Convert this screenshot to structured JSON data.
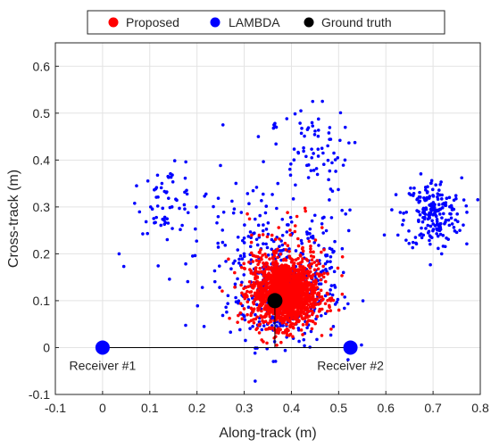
{
  "chart_data": {
    "type": "scatter",
    "title": "",
    "xlabel": "Along-track (m)",
    "ylabel": "Cross-track (m)",
    "xlim": [
      -0.1,
      0.8
    ],
    "ylim": [
      -0.1,
      0.65
    ],
    "xticks": [
      -0.1,
      0,
      0.1,
      0.2,
      0.3,
      0.4,
      0.5,
      0.6,
      0.7,
      0.8
    ],
    "yticks": [
      -0.1,
      0,
      0.1,
      0.2,
      0.3,
      0.4,
      0.5,
      0.6
    ],
    "xtick_labels": [
      "-0.1",
      "0",
      "0.1",
      "0.2",
      "0.3",
      "0.4",
      "0.5",
      "0.6",
      "0.7",
      "0.8"
    ],
    "ytick_labels": [
      "-0.1",
      "0",
      "0.1",
      "0.2",
      "0.3",
      "0.4",
      "0.5",
      "0.6"
    ],
    "grid": true,
    "legend_position": "top",
    "legend": [
      {
        "name": "Proposed",
        "color": "#ff0000"
      },
      {
        "name": "LAMBDA",
        "color": "#0000ff"
      },
      {
        "name": "Ground truth",
        "color": "#000000"
      }
    ],
    "series": [
      {
        "name": "Proposed",
        "color": "#ff0000",
        "marker": "dot",
        "clusters": [
          {
            "cx": 0.385,
            "cy": 0.115,
            "sx": 0.035,
            "sy": 0.035,
            "n": 1500
          },
          {
            "cx": 0.4,
            "cy": 0.19,
            "sx": 0.045,
            "sy": 0.045,
            "n": 110
          }
        ]
      },
      {
        "name": "LAMBDA",
        "color": "#0000ff",
        "marker": "dot",
        "clusters": [
          {
            "cx": 0.385,
            "cy": 0.115,
            "sx": 0.06,
            "sy": 0.055,
            "n": 320
          },
          {
            "cx": 0.38,
            "cy": 0.2,
            "sx": 0.09,
            "sy": 0.06,
            "n": 150
          },
          {
            "cx": 0.135,
            "cy": 0.315,
            "sx": 0.03,
            "sy": 0.035,
            "n": 55
          },
          {
            "cx": 0.7,
            "cy": 0.285,
            "sx": 0.03,
            "sy": 0.038,
            "n": 200
          },
          {
            "cx": 0.44,
            "cy": 0.42,
            "sx": 0.04,
            "sy": 0.045,
            "n": 65
          },
          {
            "cx": 0.26,
            "cy": 0.3,
            "sx": 0.05,
            "sy": 0.05,
            "n": 25
          }
        ],
        "extra_points": [
          {
            "x": 0.365,
            "y": 0.478
          },
          {
            "x": 0.365,
            "y": 0.472
          },
          {
            "x": 0.362,
            "y": 0.468
          },
          {
            "x": 0.368,
            "y": 0.47
          },
          {
            "x": 0.363,
            "y": 0.475
          },
          {
            "x": 0.33,
            "y": 0.45
          },
          {
            "x": 0.255,
            "y": 0.475
          },
          {
            "x": 0.072,
            "y": 0.345
          },
          {
            "x": 0.035,
            "y": 0.2
          },
          {
            "x": 0.045,
            "y": 0.173
          },
          {
            "x": 0.215,
            "y": 0.045
          },
          {
            "x": 0.43,
            "y": 0.065
          },
          {
            "x": 0.445,
            "y": 0.525
          },
          {
            "x": 0.42,
            "y": 0.505
          }
        ]
      },
      {
        "name": "Ground truth",
        "color": "#000000",
        "marker": "big-dot",
        "points": [
          {
            "x": 0.365,
            "y": 0.1
          }
        ]
      }
    ],
    "receivers": [
      {
        "label": "Receiver #1",
        "x": 0.0,
        "y": 0.0,
        "color": "#0000ff"
      },
      {
        "label": "Receiver #2",
        "x": 0.525,
        "y": 0.0,
        "color": "#0000ff"
      }
    ]
  }
}
